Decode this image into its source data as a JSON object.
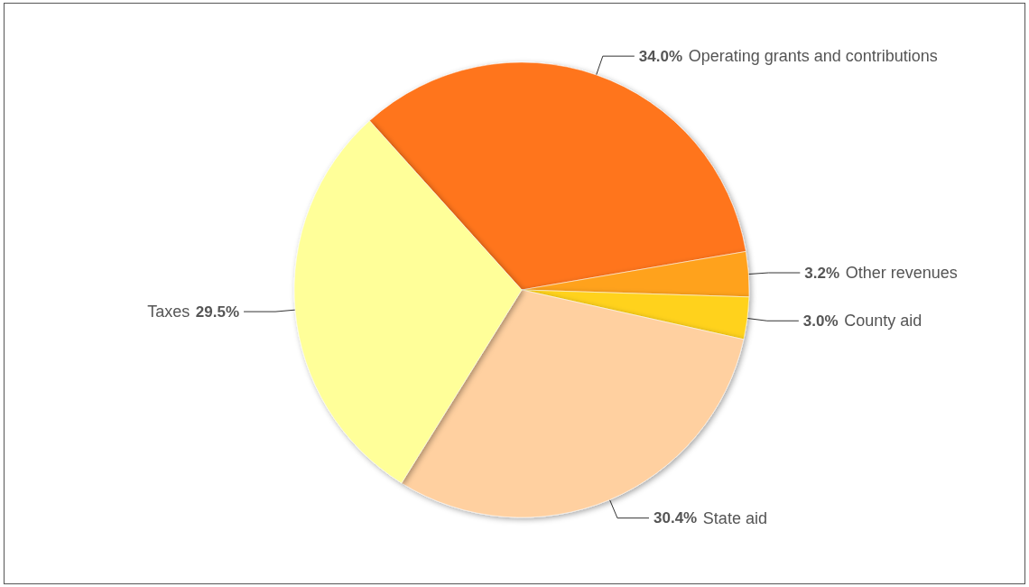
{
  "chart_data": {
    "type": "pie",
    "categories": [
      "Operating grants and contributions",
      "Other revenues",
      "County aid",
      "State aid",
      "Taxes"
    ],
    "values": [
      34.0,
      3.2,
      3.0,
      30.4,
      29.5
    ],
    "value_labels": [
      "34.0%",
      "3.2%",
      "3.0%",
      "30.4%",
      "29.5%"
    ],
    "colors": [
      "#ff751b",
      "#ffa21f",
      "#ffd21f",
      "#ffd0a0",
      "#ffff99"
    ],
    "legend": false
  }
}
